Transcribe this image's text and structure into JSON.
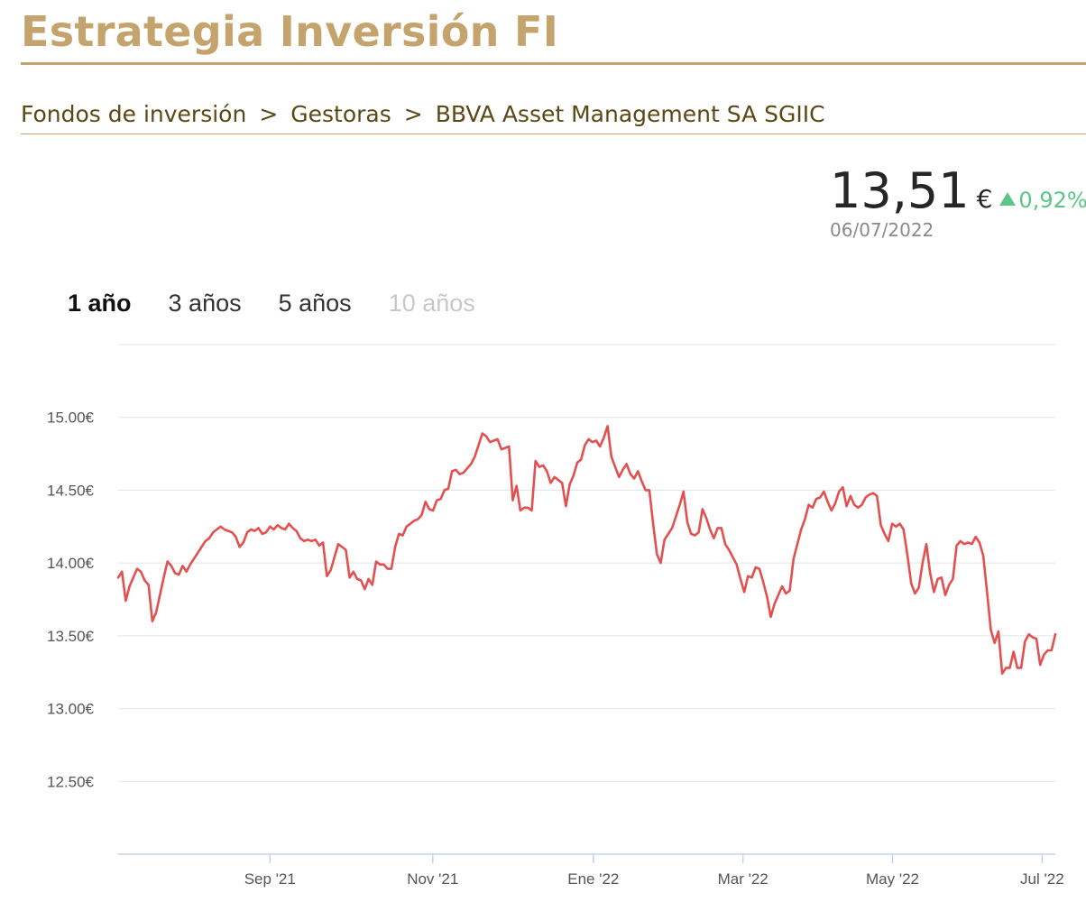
{
  "header": {
    "site_title": "Estrategia Inversión FI"
  },
  "breadcrumb": {
    "items": [
      "Fondos de inversión",
      "Gestoras",
      "BBVA Asset Management SA SGIIC"
    ],
    "separator": ">"
  },
  "price": {
    "value": "13,51",
    "currency": "€",
    "change": "0,92%",
    "date": "06/07/2022"
  },
  "range_tabs": [
    {
      "label": "1 año",
      "state": "active"
    },
    {
      "label": "3 años",
      "state": "normal"
    },
    {
      "label": "5 años",
      "state": "normal"
    },
    {
      "label": "10 años",
      "state": "disabled"
    }
  ],
  "colors": {
    "brand_gold": "#c4a46c",
    "breadcrumb_text": "#5c4815",
    "positive": "#5cc587",
    "line": "#e35050"
  },
  "chart_data": {
    "type": "line",
    "title": "",
    "xlabel": "",
    "ylabel": "",
    "ylim": [
      12.0,
      15.5
    ],
    "y_ticks": [
      12.5,
      13.0,
      13.5,
      14.0,
      14.5,
      15.0
    ],
    "y_tick_labels": [
      "12.50€",
      "13.00€",
      "13.50€",
      "14.00€",
      "14.50€",
      "15.00€"
    ],
    "x_ticks": [
      {
        "label": "Sep '21",
        "t": 34.5
      },
      {
        "label": "Nov '21",
        "t": 71.5
      },
      {
        "label": "Ene '22",
        "t": 108.0
      },
      {
        "label": "Mar '22",
        "t": 142.0
      },
      {
        "label": "May '22",
        "t": 176.0
      },
      {
        "label": "Jul '22",
        "t": 210.0
      }
    ],
    "x_range": [
      0,
      213
    ],
    "series": [
      {
        "name": "Estrategia Inversión FI",
        "values": [
          13.9,
          13.94,
          13.74,
          13.84,
          13.9,
          13.96,
          13.94,
          13.88,
          13.85,
          13.6,
          13.66,
          13.78,
          13.9,
          14.01,
          13.98,
          13.93,
          13.92,
          13.98,
          13.94,
          13.99,
          14.03,
          14.07,
          14.11,
          14.15,
          14.17,
          14.21,
          14.23,
          14.25,
          14.23,
          14.22,
          14.21,
          14.18,
          14.11,
          14.14,
          14.21,
          14.23,
          14.22,
          14.24,
          14.2,
          14.21,
          14.25,
          14.23,
          14.26,
          14.24,
          14.23,
          14.27,
          14.24,
          14.22,
          14.17,
          14.15,
          14.16,
          14.15,
          14.16,
          14.12,
          14.14,
          13.91,
          13.95,
          14.04,
          14.13,
          14.11,
          14.09,
          13.9,
          13.94,
          13.89,
          13.88,
          13.82,
          13.89,
          13.85,
          14.01,
          13.99,
          13.99,
          13.96,
          13.96,
          14.11,
          14.2,
          14.19,
          14.25,
          14.27,
          14.29,
          14.3,
          14.33,
          14.42,
          14.37,
          14.36,
          14.43,
          14.44,
          14.5,
          14.51,
          14.63,
          14.64,
          14.61,
          14.62,
          14.65,
          14.68,
          14.73,
          14.81,
          14.89,
          14.87,
          14.83,
          14.84,
          14.85,
          14.78,
          14.79,
          14.8,
          14.43,
          14.53,
          14.36,
          14.38,
          14.38,
          14.36,
          14.7,
          14.66,
          14.67,
          14.63,
          14.55,
          14.59,
          14.57,
          14.55,
          14.39,
          14.54,
          14.6,
          14.69,
          14.71,
          14.81,
          14.85,
          14.83,
          14.84,
          14.8,
          14.86,
          14.94,
          14.73,
          14.66,
          14.59,
          14.64,
          14.68,
          14.61,
          14.58,
          14.63,
          14.56,
          14.5,
          14.5,
          14.27,
          14.06,
          14.0,
          14.16,
          14.2,
          14.24,
          14.32,
          14.4,
          14.49,
          14.28,
          14.2,
          14.19,
          14.21,
          14.37,
          14.31,
          14.23,
          14.17,
          14.24,
          14.24,
          14.13,
          14.09,
          14.04,
          13.99,
          13.89,
          13.8,
          13.91,
          13.9,
          13.97,
          13.96,
          13.87,
          13.77,
          13.63,
          13.72,
          13.78,
          13.84,
          13.79,
          13.81,
          14.03,
          14.13,
          14.23,
          14.3,
          14.4,
          14.38,
          14.44,
          14.45,
          14.49,
          14.42,
          14.36,
          14.41,
          14.49,
          14.52,
          14.39,
          14.46,
          14.4,
          14.38,
          14.4,
          14.45,
          14.47,
          14.48,
          14.46,
          14.26,
          14.2,
          14.15,
          14.27,
          14.25,
          14.27,
          14.23,
          14.06,
          13.86,
          13.79,
          13.83,
          14.0,
          14.13,
          13.93,
          13.8,
          13.89,
          13.9,
          13.78,
          13.85,
          13.89,
          14.12,
          14.15,
          14.13,
          14.14,
          14.13,
          14.18,
          14.14,
          14.05,
          13.8,
          13.54,
          13.45,
          13.53,
          13.24,
          13.28,
          13.28,
          13.39,
          13.28,
          13.28,
          13.46,
          13.51,
          13.49,
          13.48,
          13.3,
          13.37,
          13.4,
          13.4,
          13.51
        ]
      }
    ]
  }
}
